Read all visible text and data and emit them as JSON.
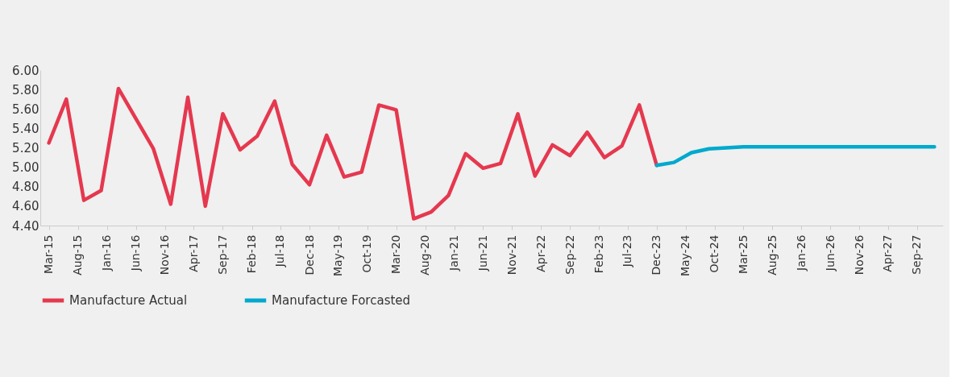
{
  "chart_data": {
    "type": "line",
    "legend": "bottom",
    "grid": false,
    "marker": "none",
    "line_style": "solid",
    "ylim": [
      4.4,
      6.0
    ],
    "yticks": [
      {
        "value": 4.4,
        "label": "4.40"
      },
      {
        "value": 4.6,
        "label": "4.60"
      },
      {
        "value": 4.8,
        "label": "4.80"
      },
      {
        "value": 5.0,
        "label": "5.00"
      },
      {
        "value": 5.2,
        "label": "5.20"
      },
      {
        "value": 5.4,
        "label": "5.40"
      },
      {
        "value": 5.6,
        "label": "5.60"
      },
      {
        "value": 5.8,
        "label": "5.80"
      },
      {
        "value": 6.0,
        "label": "6.00"
      }
    ],
    "xlim": [
      "2015-01-15",
      "2028-01-15"
    ],
    "xticks": [
      {
        "value": "2015-03",
        "label": "Mar-15"
      },
      {
        "value": "2015-08",
        "label": "Aug-15"
      },
      {
        "value": "2016-01",
        "label": "Jan-16"
      },
      {
        "value": "2016-06",
        "label": "Jun-16"
      },
      {
        "value": "2016-11",
        "label": "Nov-16"
      },
      {
        "value": "2017-04",
        "label": "Apr-17"
      },
      {
        "value": "2017-09",
        "label": "Sep-17"
      },
      {
        "value": "2018-02",
        "label": "Feb-18"
      },
      {
        "value": "2018-07",
        "label": "Jul-18"
      },
      {
        "value": "2018-12",
        "label": "Dec-18"
      },
      {
        "value": "2019-05",
        "label": "May-19"
      },
      {
        "value": "2019-10",
        "label": "Oct-19"
      },
      {
        "value": "2020-03",
        "label": "Mar-20"
      },
      {
        "value": "2020-08",
        "label": "Aug-20"
      },
      {
        "value": "2021-01",
        "label": "Jan-21"
      },
      {
        "value": "2021-06",
        "label": "Jun-21"
      },
      {
        "value": "2021-11",
        "label": "Nov-21"
      },
      {
        "value": "2022-04",
        "label": "Apr-22"
      },
      {
        "value": "2022-09",
        "label": "Sep-22"
      },
      {
        "value": "2023-02",
        "label": "Feb-23"
      },
      {
        "value": "2023-07",
        "label": "Jul-23"
      },
      {
        "value": "2023-12",
        "label": "Dec-23"
      },
      {
        "value": "2024-05",
        "label": "May-24"
      },
      {
        "value": "2024-10",
        "label": "Oct-24"
      },
      {
        "value": "2025-03",
        "label": "Mar-25"
      },
      {
        "value": "2025-08",
        "label": "Aug-25"
      },
      {
        "value": "2026-01",
        "label": "Jan-26"
      },
      {
        "value": "2026-06",
        "label": "Jun-26"
      },
      {
        "value": "2026-11",
        "label": "Nov-26"
      },
      {
        "value": "2027-04",
        "label": "Apr-27"
      },
      {
        "value": "2027-09",
        "label": "Sep-27"
      }
    ],
    "series": [
      {
        "name": "Manufacture Actual",
        "color": "#e5384f",
        "x": [
          "2015-03",
          "2015-06",
          "2015-09",
          "2015-12",
          "2016-03",
          "2016-06",
          "2016-09",
          "2016-12",
          "2017-03",
          "2017-06",
          "2017-09",
          "2017-12",
          "2018-03",
          "2018-06",
          "2018-09",
          "2018-12",
          "2019-03",
          "2019-06",
          "2019-09",
          "2019-12",
          "2020-03",
          "2020-06",
          "2020-09",
          "2020-12",
          "2021-03",
          "2021-06",
          "2021-09",
          "2021-12",
          "2022-03",
          "2022-06",
          "2022-09",
          "2022-12",
          "2023-03",
          "2023-06",
          "2023-09",
          "2023-12"
        ],
        "values": [
          5.25,
          5.7,
          4.66,
          4.76,
          5.81,
          5.5,
          5.19,
          4.62,
          5.72,
          4.6,
          5.55,
          5.18,
          5.32,
          5.68,
          5.03,
          4.82,
          5.33,
          4.9,
          4.95,
          5.64,
          5.59,
          4.47,
          4.54,
          4.71,
          5.14,
          4.99,
          5.04,
          5.55,
          4.91,
          5.23,
          5.12,
          5.36,
          5.1,
          5.22,
          5.64,
          5.02
        ]
      },
      {
        "name": "Manufacture Forcasted",
        "color": "#00a9ce",
        "x": [
          "2023-12",
          "2024-03",
          "2024-06",
          "2024-09",
          "2024-12",
          "2025-03",
          "2025-06",
          "2025-09",
          "2025-12",
          "2026-03",
          "2026-06",
          "2026-09",
          "2026-12",
          "2027-03",
          "2027-06",
          "2027-09",
          "2027-12"
        ],
        "values": [
          5.02,
          5.05,
          5.15,
          5.19,
          5.2,
          5.21,
          5.21,
          5.21,
          5.21,
          5.21,
          5.21,
          5.21,
          5.21,
          5.21,
          5.21,
          5.21,
          5.21
        ]
      }
    ]
  }
}
